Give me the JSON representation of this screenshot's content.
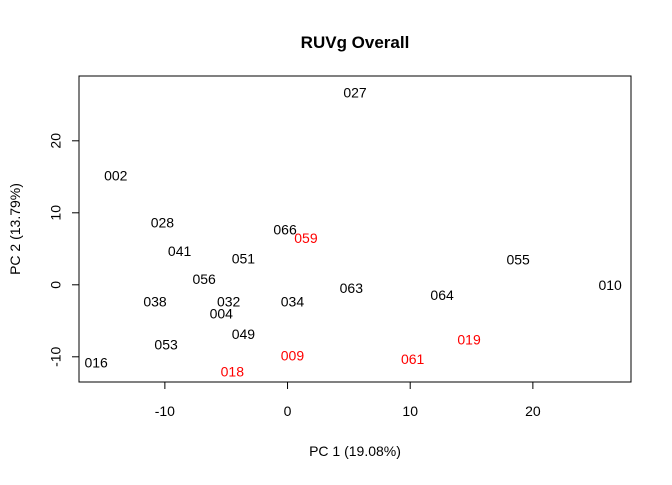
{
  "chart_data": {
    "type": "scatter",
    "title": "RUVg Overall",
    "xlabel": "PC 1 (19.08%)",
    "ylabel": "PC 2 (13.79%)",
    "xlim": [
      -17,
      28
    ],
    "ylim": [
      -13.5,
      29
    ],
    "xticks": [
      "-10",
      "0",
      "10",
      "20"
    ],
    "xtick_values": [
      -10,
      0,
      10,
      20
    ],
    "yticks": [
      "-10",
      "0",
      "10",
      "20"
    ],
    "ytick_values": [
      -10,
      0,
      10,
      20
    ],
    "grid": false,
    "colors": {
      "default": "#000000",
      "highlight": "#ff0000"
    },
    "points": [
      {
        "label": "027",
        "x": 5.5,
        "y": 26.5,
        "color": "#000000"
      },
      {
        "label": "002",
        "x": -14.0,
        "y": 15.0,
        "color": "#000000"
      },
      {
        "label": "028",
        "x": -10.2,
        "y": 8.5,
        "color": "#000000"
      },
      {
        "label": "066",
        "x": -0.2,
        "y": 7.5,
        "color": "#000000"
      },
      {
        "label": "059",
        "x": 1.5,
        "y": 6.3,
        "color": "#ff0000"
      },
      {
        "label": "041",
        "x": -8.8,
        "y": 4.5,
        "color": "#000000"
      },
      {
        "label": "051",
        "x": -3.6,
        "y": 3.5,
        "color": "#000000"
      },
      {
        "label": "055",
        "x": 18.8,
        "y": 3.3,
        "color": "#000000"
      },
      {
        "label": "056",
        "x": -6.8,
        "y": 0.6,
        "color": "#000000"
      },
      {
        "label": "010",
        "x": 26.3,
        "y": -0.2,
        "color": "#000000"
      },
      {
        "label": "063",
        "x": 5.2,
        "y": -0.6,
        "color": "#000000"
      },
      {
        "label": "064",
        "x": 12.6,
        "y": -1.6,
        "color": "#000000"
      },
      {
        "label": "038",
        "x": -10.8,
        "y": -2.5,
        "color": "#000000"
      },
      {
        "label": "032",
        "x": -4.8,
        "y": -2.5,
        "color": "#000000"
      },
      {
        "label": "034",
        "x": 0.4,
        "y": -2.5,
        "color": "#000000"
      },
      {
        "label": "004",
        "x": -5.4,
        "y": -4.2,
        "color": "#000000"
      },
      {
        "label": "049",
        "x": -3.6,
        "y": -7.0,
        "color": "#000000"
      },
      {
        "label": "019",
        "x": 14.8,
        "y": -7.8,
        "color": "#ff0000"
      },
      {
        "label": "053",
        "x": -9.9,
        "y": -8.5,
        "color": "#000000"
      },
      {
        "label": "009",
        "x": 0.4,
        "y": -10.0,
        "color": "#ff0000"
      },
      {
        "label": "061",
        "x": 10.2,
        "y": -10.5,
        "color": "#ff0000"
      },
      {
        "label": "016",
        "x": -15.6,
        "y": -11.0,
        "color": "#000000"
      },
      {
        "label": "018",
        "x": -4.5,
        "y": -12.2,
        "color": "#ff0000"
      }
    ]
  }
}
